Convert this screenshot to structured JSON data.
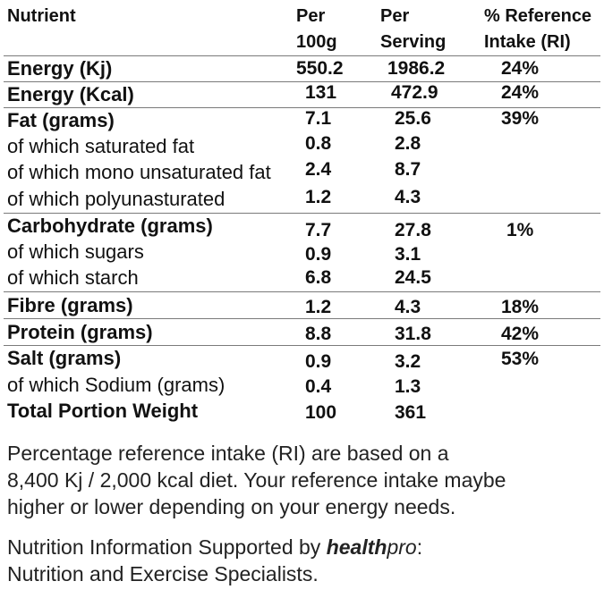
{
  "header": {
    "nutrient": "Nutrient",
    "per100_line1": "Per",
    "per100_line2": "100g",
    "perserv_line1": "Per",
    "perserv_line2": "Serving",
    "ri_line1": "% Reference",
    "ri_line2": "Intake (RI)"
  },
  "rows": [
    {
      "label": "Energy (Kj)",
      "per100": "550.2",
      "serving": "1986.2",
      "ri": "24%"
    },
    {
      "label": "Energy (Kcal)",
      "per100": "131",
      "serving": "472.9",
      "ri": "24%"
    },
    {
      "label": "Fat (grams)",
      "per100": "7.1",
      "serving": "25.6",
      "ri": "39%"
    },
    {
      "label": "of which saturated fat",
      "per100": "0.8",
      "serving": "2.8",
      "ri": ""
    },
    {
      "label": "of which mono unsaturated fat",
      "per100": "2.4",
      "serving": "8.7",
      "ri": ""
    },
    {
      "label": "of which polyunasturated",
      "per100": "1.2",
      "serving": "4.3",
      "ri": ""
    },
    {
      "label": "Carbohydrate (grams)",
      "per100": "7.7",
      "serving": "27.8",
      "ri": "1%"
    },
    {
      "label": "of which sugars",
      "per100": "0.9",
      "serving": "3.1",
      "ri": ""
    },
    {
      "label": "of which starch",
      "per100": "6.8",
      "serving": "24.5",
      "ri": ""
    },
    {
      "label": "Fibre (grams)",
      "per100": "1.2",
      "serving": "4.3",
      "ri": "18%"
    },
    {
      "label": "Protein (grams)",
      "per100": "8.8",
      "serving": "31.8",
      "ri": "42%"
    },
    {
      "label": "Salt (grams)",
      "per100": "0.9",
      "serving": "3.2",
      "ri": "53%"
    },
    {
      "label": "of which Sodium (grams)",
      "per100": "0.4",
      "serving": "1.3",
      "ri": ""
    },
    {
      "label": "Total Portion Weight",
      "per100": "100",
      "serving": "361",
      "ri": ""
    }
  ],
  "footnote": {
    "line1": "Percentage reference intake (RI) are based on a",
    "line2": "8,400 Kj / 2,000 kcal diet. Your reference intake maybe",
    "line3": "higher or lower depending on your energy needs."
  },
  "credit": {
    "prefix": "Nutrition Information Supported by ",
    "brand_bold": "health",
    "brand_italic": "pro",
    "suffix": ":",
    "line2": "Nutrition and Exercise Specialists."
  }
}
